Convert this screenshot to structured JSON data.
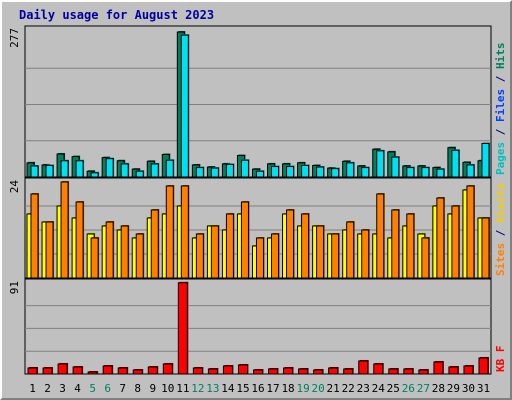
{
  "chart_data": {
    "type": "bar",
    "title": "Daily usage for August 2023",
    "days": [
      "1",
      "2",
      "3",
      "4",
      "5",
      "6",
      "7",
      "8",
      "9",
      "10",
      "11",
      "12",
      "13",
      "14",
      "15",
      "16",
      "17",
      "18",
      "19",
      "20",
      "21",
      "22",
      "23",
      "24",
      "25",
      "26",
      "27",
      "28",
      "29",
      "30",
      "31"
    ],
    "weekend_days": [
      "5",
      "6",
      "12",
      "13",
      "19",
      "20",
      "26",
      "27"
    ],
    "panels": [
      {
        "id": "hits-files-pages",
        "ymax": 277,
        "ymax_label": "277",
        "legend": [
          {
            "text": "Pages",
            "color": "#00c0c0"
          },
          {
            "text": " / ",
            "color": "#000080"
          },
          {
            "text": "Files",
            "color": "#0040ff"
          },
          {
            "text": " / ",
            "color": "#000080"
          },
          {
            "text": "Hits",
            "color": "#00805c"
          }
        ],
        "series": [
          {
            "name": "Hits",
            "color": "#00805c",
            "values": [
              27,
              23,
              44,
              39,
              11,
              37,
              31,
              15,
              30,
              43,
              277,
              23,
              19,
              25,
              41,
              15,
              25,
              25,
              27,
              22,
              17,
              30,
              21,
              53,
              48,
              21,
              21,
              18,
              56,
              28,
              31
            ]
          },
          {
            "name": "Files",
            "color": "#00e0f0",
            "values": [
              21,
              22,
              31,
              31,
              8,
              35,
              25,
              11,
              25,
              32,
              271,
              18,
              17,
              24,
              32,
              11,
              20,
              20,
              22,
              19,
              16,
              27,
              18,
              50,
              38,
              18,
              18,
              15,
              51,
              23,
              64
            ]
          },
          {
            "name": "Pages",
            "color": "#00c0c0",
            "values": []
          }
        ]
      },
      {
        "id": "visits-sites",
        "ymax": 24,
        "ymax_label": "24",
        "legend": [
          {
            "text": "Sites",
            "color": "#ff8000"
          },
          {
            "text": " / ",
            "color": "#000080"
          },
          {
            "text": "Visits",
            "color": "#f0d000"
          }
        ],
        "series": [
          {
            "name": "Visits",
            "color": "#ffff00",
            "values": [
              16,
              14,
              18,
              15,
              11,
              13,
              12,
              10,
              15,
              16,
              18,
              10,
              13,
              12,
              16,
              8,
              10,
              16,
              13,
              13,
              11,
              12,
              11,
              11,
              10,
              13,
              11,
              18,
              16,
              22,
              15
            ]
          },
          {
            "name": "Sites",
            "color": "#ff8000",
            "values": [
              21,
              14,
              24,
              19,
              10,
              14,
              13,
              11,
              17,
              23,
              23,
              11,
              13,
              16,
              19,
              10,
              11,
              17,
              16,
              13,
              11,
              14,
              12,
              21,
              17,
              16,
              10,
              20,
              18,
              23,
              15
            ]
          }
        ]
      },
      {
        "id": "kbf",
        "ymax": 91,
        "ymax_label": "91",
        "legend": [
          {
            "text": "KB F",
            "color": "#ff0000"
          }
        ],
        "series": [
          {
            "name": "KB F",
            "color": "#ff0000",
            "values": [
              6,
              6,
              10,
              7,
              2,
              8,
              6,
              4,
              7,
              10,
              91,
              6,
              5,
              8,
              9,
              4,
              5,
              6,
              5,
              4,
              6,
              5,
              13,
              10,
              5,
              5,
              4,
              12,
              7,
              8,
              16
            ]
          }
        ]
      }
    ]
  }
}
